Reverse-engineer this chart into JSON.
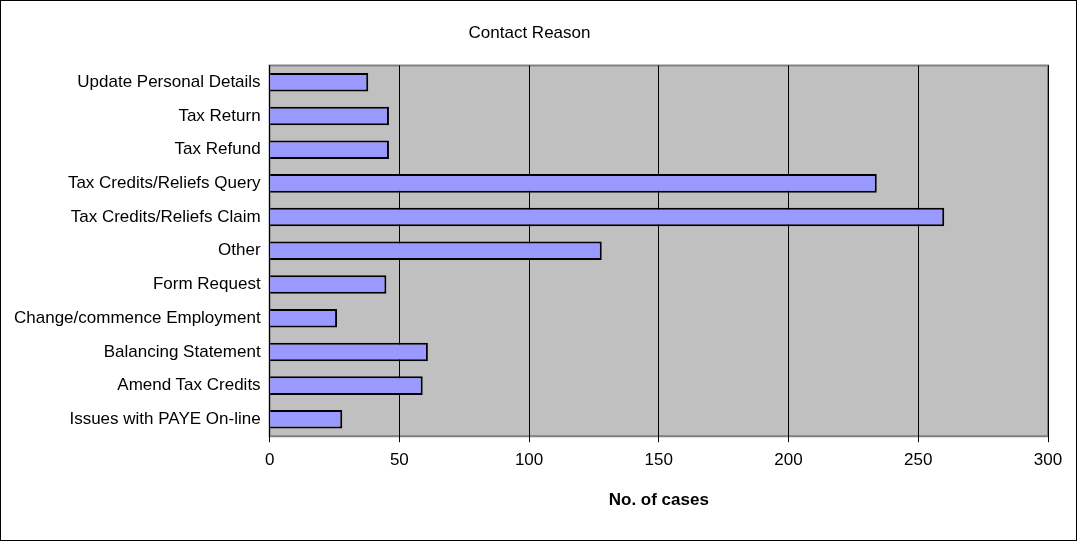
{
  "chart_data": {
    "type": "bar",
    "orientation": "horizontal",
    "title": "Contact Reason",
    "xlabel": "No. of cases",
    "categories": [
      "Update Personal Details",
      "Tax Return",
      "Tax Refund",
      "Tax Credits/Reliefs Query",
      "Tax Credits/Reliefs Claim",
      "Other",
      "Form Request",
      "Change/commence Employment",
      "Balancing Statement",
      "Amend Tax Credits",
      "Issues with PAYE On-line"
    ],
    "values": [
      38,
      46,
      46,
      234,
      260,
      128,
      45,
      26,
      61,
      59,
      28
    ],
    "color": "#9999ff",
    "xlim": [
      0,
      300
    ],
    "xticks": [
      0,
      50,
      100,
      150,
      200,
      250,
      300
    ],
    "grid": "x",
    "legend": false
  }
}
